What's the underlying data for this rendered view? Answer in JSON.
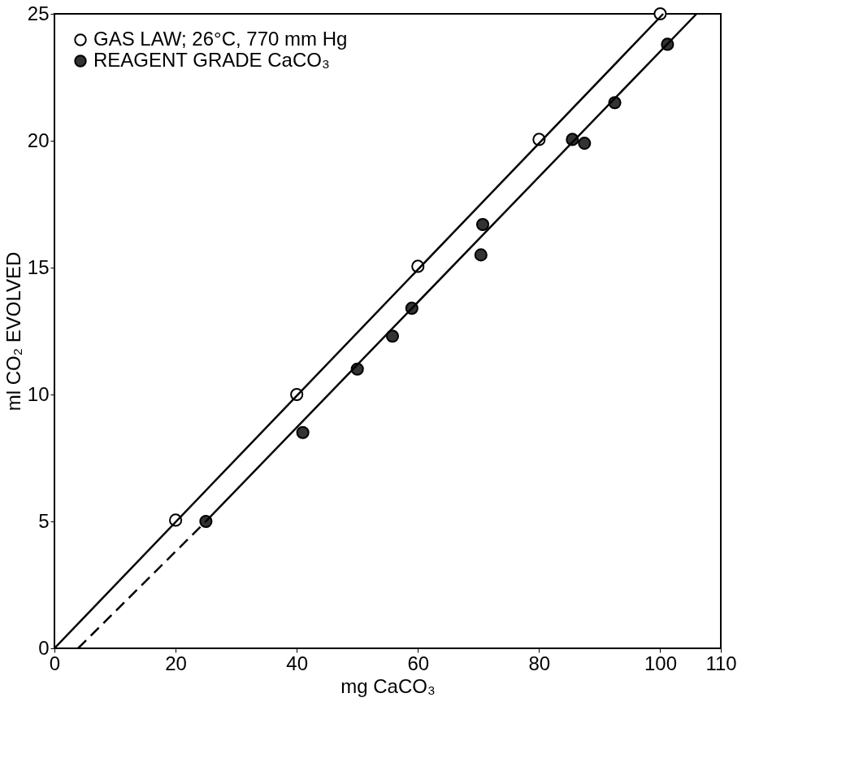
{
  "chart_data": {
    "type": "scatter",
    "xlabel": "mg CaCO₃",
    "ylabel": "ml CO₂ EVOLVED",
    "xlim": [
      0,
      110
    ],
    "ylim": [
      0,
      25
    ],
    "xticks": [
      0,
      20,
      40,
      60,
      80,
      100,
      110
    ],
    "yticks": [
      0,
      5,
      10,
      15,
      20,
      25
    ],
    "grid": false,
    "legend": "top left",
    "marker": "circle",
    "series": [
      {
        "name": "GAS LAW; 26°C, 770 mm Hg",
        "color": "#ffffff",
        "x": [
          20,
          40,
          60,
          80,
          100
        ],
        "values": [
          5.05,
          10.0,
          15.05,
          20.05,
          25.0
        ]
      },
      {
        "name": "REAGENT GRADE CaCO₃",
        "color": "#333333",
        "x": [
          25,
          41,
          50,
          55.8,
          59,
          70.4,
          70.7,
          85.5,
          87.5,
          92.5,
          101.2
        ],
        "values": [
          5.0,
          8.5,
          11.0,
          12.3,
          13.4,
          15.5,
          16.7,
          20.05,
          19.9,
          21.5,
          23.8
        ]
      },
      {
        "type": "line",
        "marker": "none",
        "color": "#000000",
        "line_style": "solid",
        "x": [
          0,
          100.5
        ],
        "values": [
          0,
          25
        ]
      },
      {
        "type": "line",
        "marker": "none",
        "color": "#000000",
        "line_style": "solid",
        "x": [
          25,
          106
        ],
        "values": [
          5.0,
          25
        ]
      },
      {
        "type": "line",
        "marker": "none",
        "color": "#000000",
        "line_style": "dashed",
        "x": [
          3.9,
          25
        ],
        "values": [
          0,
          5.0
        ]
      }
    ]
  }
}
